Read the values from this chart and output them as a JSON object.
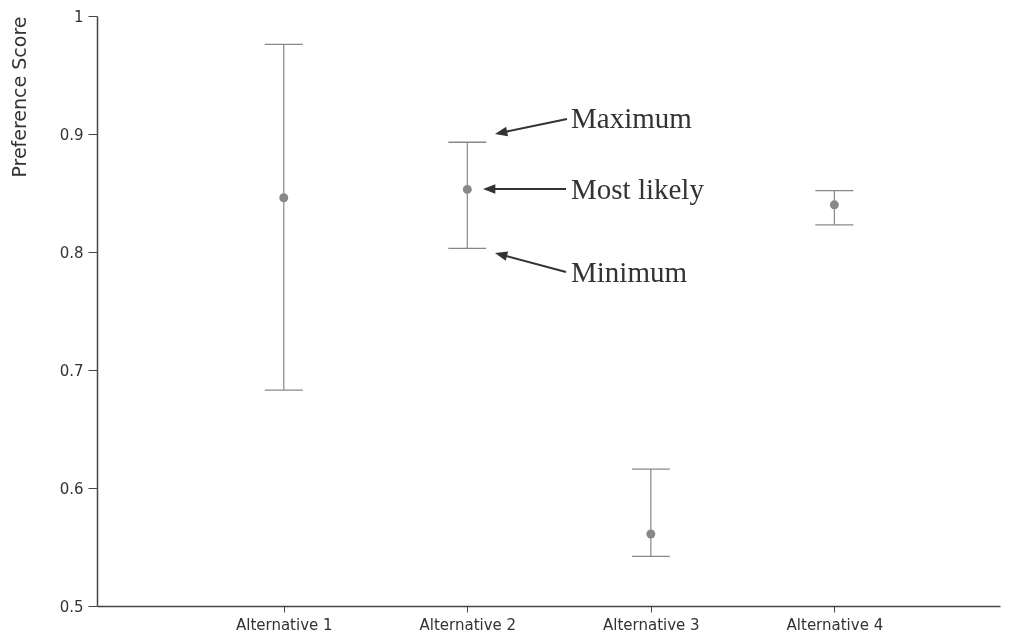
{
  "chart_data": {
    "type": "scatter",
    "ylabel": "Preference Score",
    "categories": [
      "Alternative 1",
      "Alternative 2",
      "Alternative 3",
      "Alternative 4"
    ],
    "values": [
      0.846,
      0.853,
      0.561,
      0.84
    ],
    "color": "#888888",
    "marker": "circle",
    "errors": [
      [
        0.683,
        0.976
      ],
      [
        0.803,
        0.893
      ],
      [
        0.542,
        0.616
      ],
      [
        0.823,
        0.852
      ]
    ],
    "ylim": [
      0.5,
      1
    ],
    "yticks": [
      0.5,
      0.6,
      0.7,
      0.8,
      0.9,
      1
    ],
    "annotations": [
      "Maximum",
      "Most likely",
      "Minimum"
    ]
  }
}
